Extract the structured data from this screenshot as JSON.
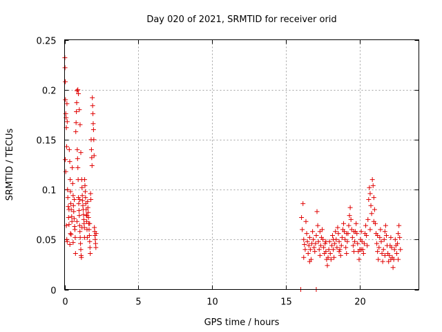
{
  "chart_data": {
    "type": "scatter",
    "title": "Day 020 of 2021, SRMTID for receiver orid",
    "xlabel": "GPS time / hours",
    "ylabel": "SRMTID / TECUs",
    "xlim": [
      0,
      24
    ],
    "ylim": [
      0,
      0.25
    ],
    "x_ticks": [
      0,
      5,
      10,
      15,
      20
    ],
    "x_tick_labels": [
      "0",
      "5",
      "10",
      "15",
      "20"
    ],
    "y_ticks": [
      0,
      0.05,
      0.1,
      0.15,
      0.2,
      0.25
    ],
    "y_tick_labels": [
      "0",
      "0.05",
      "0.1",
      "0.15",
      "0.2",
      "0.25"
    ],
    "grid": true,
    "legend": "none",
    "marker": "plus",
    "color": "#e00000",
    "series": [
      {
        "values": [
          [
            0.02,
            0.232
          ],
          [
            0.03,
            0.222
          ],
          [
            0.05,
            0.208
          ],
          [
            0.06,
            0.19
          ],
          [
            0.08,
            0.176
          ],
          [
            0.1,
            0.172
          ],
          [
            0.12,
            0.162
          ],
          [
            0.14,
            0.143
          ],
          [
            0.05,
            0.13
          ],
          [
            0.08,
            0.118
          ],
          [
            0.16,
            0.186
          ],
          [
            0.18,
            0.168
          ],
          [
            0.2,
            0.1
          ],
          [
            0.22,
            0.092
          ],
          [
            0.25,
            0.083
          ],
          [
            0.27,
            0.072
          ],
          [
            0.3,
            0.065
          ],
          [
            0.12,
            0.064
          ],
          [
            0.15,
            0.05
          ],
          [
            0.18,
            0.048
          ],
          [
            0.32,
            0.14
          ],
          [
            0.35,
            0.128
          ],
          [
            0.38,
            0.11
          ],
          [
            0.4,
            0.098
          ],
          [
            0.42,
            0.086
          ],
          [
            0.45,
            0.08
          ],
          [
            0.48,
            0.073
          ],
          [
            0.5,
            0.068
          ],
          [
            0.4,
            0.056
          ],
          [
            0.36,
            0.045
          ],
          [
            0.52,
            0.122
          ],
          [
            0.55,
            0.106
          ],
          [
            0.58,
            0.094
          ],
          [
            0.6,
            0.084
          ],
          [
            0.62,
            0.078
          ],
          [
            0.65,
            0.071
          ],
          [
            0.68,
            0.063
          ],
          [
            0.7,
            0.06
          ],
          [
            0.72,
            0.052
          ],
          [
            0.74,
            0.036
          ],
          [
            0.76,
            0.158
          ],
          [
            0.78,
            0.167
          ],
          [
            0.8,
            0.178
          ],
          [
            0.82,
            0.187
          ],
          [
            0.84,
            0.199
          ],
          [
            0.86,
            0.14
          ],
          [
            0.88,
            0.131
          ],
          [
            0.9,
            0.122
          ],
          [
            0.92,
            0.11
          ],
          [
            0.94,
            0.092
          ],
          [
            0.96,
            0.086
          ],
          [
            0.98,
            0.079
          ],
          [
            1.0,
            0.074
          ],
          [
            1.02,
            0.064
          ],
          [
            1.04,
            0.058
          ],
          [
            1.06,
            0.052
          ],
          [
            1.08,
            0.046
          ],
          [
            1.1,
            0.04
          ],
          [
            1.12,
            0.034
          ],
          [
            1.14,
            0.032
          ],
          [
            1.16,
            0.11
          ],
          [
            1.18,
            0.102
          ],
          [
            1.2,
            0.094
          ],
          [
            1.22,
            0.089
          ],
          [
            1.24,
            0.084
          ],
          [
            1.26,
            0.08
          ],
          [
            1.28,
            0.075
          ],
          [
            1.3,
            0.07
          ],
          [
            1.32,
            0.066
          ],
          [
            1.34,
            0.062
          ],
          [
            1.36,
            0.11
          ],
          [
            1.38,
            0.104
          ],
          [
            1.4,
            0.098
          ],
          [
            1.42,
            0.092
          ],
          [
            1.44,
            0.086
          ],
          [
            1.46,
            0.08
          ],
          [
            1.48,
            0.074
          ],
          [
            1.5,
            0.068
          ],
          [
            1.52,
            0.06
          ],
          [
            1.54,
            0.052
          ],
          [
            1.56,
            0.088
          ],
          [
            1.58,
            0.082
          ],
          [
            1.6,
            0.077
          ],
          [
            1.62,
            0.072
          ],
          [
            1.64,
            0.066
          ],
          [
            1.66,
            0.06
          ],
          [
            1.68,
            0.054
          ],
          [
            1.7,
            0.048
          ],
          [
            1.72,
            0.042
          ],
          [
            1.74,
            0.036
          ],
          [
            1.76,
            0.096
          ],
          [
            1.78,
            0.09
          ],
          [
            1.8,
            0.15
          ],
          [
            1.82,
            0.14
          ],
          [
            1.84,
            0.132
          ],
          [
            1.86,
            0.124
          ],
          [
            1.88,
            0.192
          ],
          [
            1.9,
            0.184
          ],
          [
            1.92,
            0.176
          ],
          [
            1.94,
            0.166
          ],
          [
            1.96,
            0.16
          ],
          [
            1.98,
            0.15
          ],
          [
            2.0,
            0.134
          ],
          [
            2.02,
            0.062
          ],
          [
            2.04,
            0.058
          ],
          [
            2.06,
            0.054
          ],
          [
            2.08,
            0.05
          ],
          [
            2.1,
            0.046
          ],
          [
            2.12,
            0.042
          ],
          [
            2.14,
            0.056
          ],
          [
            0.9,
            0.2
          ],
          [
            0.94,
            0.196
          ],
          [
            1.0,
            0.18
          ],
          [
            1.05,
            0.165
          ],
          [
            1.1,
            0.137
          ],
          [
            0.3,
            0.08
          ],
          [
            0.44,
            0.055
          ],
          [
            0.58,
            0.047
          ],
          [
            0.66,
            0.09
          ],
          [
            0.84,
            0.068
          ],
          [
            1.02,
            0.09
          ],
          [
            1.18,
            0.062
          ],
          [
            1.35,
            0.052
          ],
          [
            1.52,
            0.074
          ],
          [
            1.7,
            0.066
          ],
          [
            16.0,
            0.0
          ],
          [
            17.05,
            0.0
          ],
          [
            16.05,
            0.072
          ],
          [
            16.1,
            0.06
          ],
          [
            16.15,
            0.086
          ],
          [
            16.2,
            0.05
          ],
          [
            16.25,
            0.045
          ],
          [
            16.3,
            0.04
          ],
          [
            16.35,
            0.068
          ],
          [
            16.4,
            0.056
          ],
          [
            16.45,
            0.048
          ],
          [
            16.5,
            0.036
          ],
          [
            16.55,
            0.044
          ],
          [
            16.6,
            0.052
          ],
          [
            16.65,
            0.04
          ],
          [
            16.7,
            0.03
          ],
          [
            16.75,
            0.046
          ],
          [
            16.8,
            0.058
          ],
          [
            16.85,
            0.05
          ],
          [
            16.9,
            0.042
          ],
          [
            16.95,
            0.038
          ],
          [
            17.0,
            0.046
          ],
          [
            17.05,
            0.054
          ],
          [
            17.1,
            0.078
          ],
          [
            17.15,
            0.064
          ],
          [
            17.2,
            0.048
          ],
          [
            17.25,
            0.04
          ],
          [
            17.3,
            0.034
          ],
          [
            17.35,
            0.044
          ],
          [
            17.4,
            0.052
          ],
          [
            17.45,
            0.06
          ],
          [
            17.5,
            0.05
          ],
          [
            17.55,
            0.042
          ],
          [
            17.6,
            0.036
          ],
          [
            17.65,
            0.046
          ],
          [
            17.7,
            0.038
          ],
          [
            17.75,
            0.03
          ],
          [
            17.8,
            0.024
          ],
          [
            17.85,
            0.032
          ],
          [
            17.9,
            0.04
          ],
          [
            17.95,
            0.048
          ],
          [
            18.0,
            0.036
          ],
          [
            18.05,
            0.03
          ],
          [
            18.1,
            0.044
          ],
          [
            18.15,
            0.054
          ],
          [
            18.2,
            0.04
          ],
          [
            18.25,
            0.032
          ],
          [
            18.3,
            0.046
          ],
          [
            18.35,
            0.058
          ],
          [
            18.4,
            0.05
          ],
          [
            18.45,
            0.042
          ],
          [
            18.5,
            0.062
          ],
          [
            18.55,
            0.056
          ],
          [
            18.6,
            0.048
          ],
          [
            18.65,
            0.04
          ],
          [
            18.7,
            0.034
          ],
          [
            18.75,
            0.044
          ],
          [
            18.8,
            0.052
          ],
          [
            18.85,
            0.06
          ],
          [
            18.9,
            0.066
          ],
          [
            18.95,
            0.058
          ],
          [
            19.0,
            0.05
          ],
          [
            19.05,
            0.042
          ],
          [
            19.1,
            0.036
          ],
          [
            19.15,
            0.048
          ],
          [
            19.2,
            0.056
          ],
          [
            19.25,
            0.064
          ],
          [
            19.3,
            0.074
          ],
          [
            19.35,
            0.082
          ],
          [
            19.4,
            0.07
          ],
          [
            19.45,
            0.06
          ],
          [
            19.5,
            0.052
          ],
          [
            19.55,
            0.044
          ],
          [
            19.6,
            0.038
          ],
          [
            19.65,
            0.048
          ],
          [
            19.7,
            0.058
          ],
          [
            19.75,
            0.066
          ],
          [
            19.8,
            0.056
          ],
          [
            19.85,
            0.046
          ],
          [
            19.9,
            0.038
          ],
          [
            19.95,
            0.03
          ],
          [
            20.0,
            0.04
          ],
          [
            20.05,
            0.05
          ],
          [
            20.1,
            0.058
          ],
          [
            20.15,
            0.048
          ],
          [
            20.2,
            0.04
          ],
          [
            20.25,
            0.036
          ],
          [
            20.3,
            0.046
          ],
          [
            20.35,
            0.056
          ],
          [
            20.4,
            0.064
          ],
          [
            20.45,
            0.054
          ],
          [
            20.5,
            0.044
          ],
          [
            20.55,
            0.07
          ],
          [
            20.6,
            0.09
          ],
          [
            20.65,
            0.102
          ],
          [
            20.7,
            0.096
          ],
          [
            20.75,
            0.084
          ],
          [
            20.8,
            0.076
          ],
          [
            20.85,
            0.11
          ],
          [
            20.9,
            0.104
          ],
          [
            20.95,
            0.092
          ],
          [
            21.0,
            0.08
          ],
          [
            21.05,
            0.066
          ],
          [
            21.1,
            0.056
          ],
          [
            21.15,
            0.046
          ],
          [
            21.2,
            0.038
          ],
          [
            21.25,
            0.03
          ],
          [
            21.3,
            0.042
          ],
          [
            21.35,
            0.052
          ],
          [
            21.4,
            0.06
          ],
          [
            21.45,
            0.048
          ],
          [
            21.5,
            0.036
          ],
          [
            21.55,
            0.028
          ],
          [
            21.6,
            0.04
          ],
          [
            21.65,
            0.05
          ],
          [
            21.7,
            0.058
          ],
          [
            21.75,
            0.064
          ],
          [
            21.8,
            0.054
          ],
          [
            21.85,
            0.044
          ],
          [
            21.9,
            0.036
          ],
          [
            21.95,
            0.028
          ],
          [
            22.0,
            0.034
          ],
          [
            22.05,
            0.044
          ],
          [
            22.1,
            0.052
          ],
          [
            22.15,
            0.042
          ],
          [
            22.2,
            0.032
          ],
          [
            22.25,
            0.022
          ],
          [
            22.3,
            0.03
          ],
          [
            22.35,
            0.04
          ],
          [
            22.4,
            0.05
          ],
          [
            22.45,
            0.044
          ],
          [
            22.5,
            0.036
          ],
          [
            22.55,
            0.046
          ],
          [
            22.6,
            0.056
          ],
          [
            22.65,
            0.064
          ],
          [
            22.7,
            0.052
          ],
          [
            22.75,
            0.04
          ],
          [
            16.2,
            0.032
          ],
          [
            16.6,
            0.028
          ],
          [
            17.3,
            0.058
          ],
          [
            17.7,
            0.048
          ],
          [
            18.2,
            0.05
          ],
          [
            18.6,
            0.038
          ],
          [
            19.1,
            0.056
          ],
          [
            19.6,
            0.058
          ],
          [
            20.1,
            0.04
          ],
          [
            20.7,
            0.06
          ],
          [
            21.2,
            0.054
          ],
          [
            21.7,
            0.034
          ],
          [
            22.1,
            0.03
          ],
          [
            22.6,
            0.03
          ],
          [
            20.95,
            0.068
          ]
        ]
      }
    ]
  }
}
